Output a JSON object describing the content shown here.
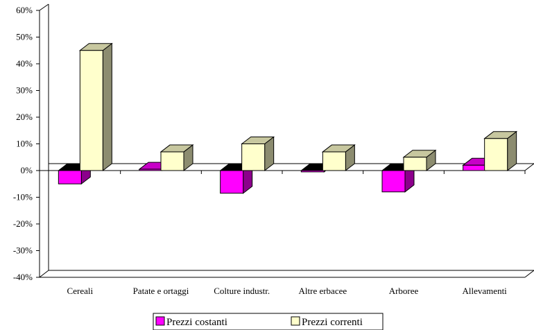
{
  "chart_data": {
    "type": "bar",
    "categories": [
      "Cereali",
      "Patate e ortaggi",
      "Colture industr.",
      "Altre erbacee",
      "Arboree",
      "Allevamenti"
    ],
    "series": [
      {
        "name": "Prezzi costanti",
        "values": [
          -5,
          0.5,
          -8.5,
          -0.5,
          -8,
          2
        ],
        "color": "#ff00ff"
      },
      {
        "name": "Prezzi correnti",
        "values": [
          45,
          7,
          10,
          7,
          5,
          12
        ],
        "color": "#ffffcc"
      }
    ],
    "yticks": [
      "60%",
      "50%",
      "40%",
      "30%",
      "20%",
      "10%",
      "0%",
      "-10%",
      "-20%",
      "-30%",
      "-40%"
    ],
    "ylim": [
      -40,
      60
    ],
    "grid": false,
    "legend": "bottom"
  }
}
